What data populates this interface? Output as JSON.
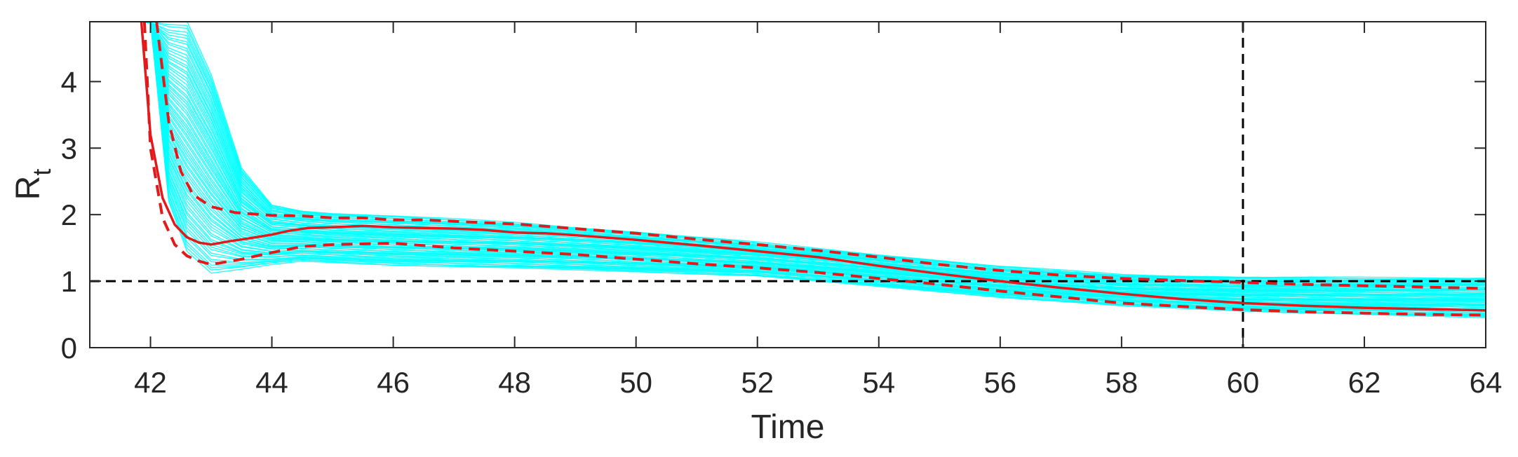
{
  "chart_data": {
    "type": "line",
    "title": "",
    "xlabel": "Time",
    "ylabel_main": "R",
    "ylabel_sub": "t",
    "xlim": [
      41,
      64
    ],
    "ylim": [
      0,
      4.9
    ],
    "xticks": [
      42,
      44,
      46,
      48,
      50,
      52,
      54,
      56,
      58,
      60,
      62,
      64
    ],
    "yticks": [
      0,
      1,
      2,
      3,
      4
    ],
    "grid": false,
    "legend": false,
    "reference_lines": [
      {
        "orientation": "horizontal",
        "value": 1,
        "style": "dashed",
        "color": "#000000"
      },
      {
        "orientation": "vertical",
        "value": 60,
        "style": "dashed",
        "color": "#000000"
      }
    ],
    "ensemble": {
      "color": "#00ffff",
      "count": 70,
      "lower_envelope": {
        "x": [
          42.0,
          42.3,
          42.6,
          43.0,
          43.5,
          44.0,
          44.5,
          45.0,
          46.0,
          48.0,
          50.0,
          52.0,
          54.0,
          56.0,
          58.0,
          60.0,
          62.0,
          64.0
        ],
        "y": [
          4.9,
          2.2,
          1.45,
          1.12,
          1.18,
          1.25,
          1.3,
          1.28,
          1.24,
          1.2,
          1.14,
          1.08,
          0.92,
          0.76,
          0.63,
          0.55,
          0.5,
          0.45
        ]
      },
      "upper_envelope": {
        "x": [
          42.0,
          42.3,
          42.6,
          43.0,
          43.5,
          44.0,
          44.5,
          45.0,
          46.0,
          48.0,
          50.0,
          52.0,
          54.0,
          56.0,
          58.0,
          60.0,
          62.0,
          64.0
        ],
        "y": [
          4.9,
          4.9,
          4.9,
          4.1,
          2.7,
          2.15,
          2.06,
          2.02,
          1.98,
          1.88,
          1.74,
          1.58,
          1.4,
          1.22,
          1.1,
          1.06,
          1.05,
          1.05
        ]
      }
    },
    "series": [
      {
        "role": "median",
        "color": "#e31a1c",
        "style": "solid",
        "x": [
          41.85,
          42.0,
          42.2,
          42.4,
          42.6,
          42.8,
          43.0,
          43.3,
          43.6,
          44.0,
          44.3,
          44.6,
          45.0,
          45.5,
          46.0,
          46.5,
          47.0,
          47.5,
          48.0,
          48.5,
          49.0,
          50.0,
          51.0,
          52.0,
          53.0,
          54.0,
          55.0,
          56.0,
          57.0,
          58.0,
          59.0,
          60.0,
          61.0,
          62.0,
          63.0,
          64.0
        ],
        "y": [
          4.9,
          3.2,
          2.25,
          1.85,
          1.66,
          1.58,
          1.55,
          1.6,
          1.64,
          1.7,
          1.76,
          1.8,
          1.81,
          1.83,
          1.81,
          1.8,
          1.79,
          1.77,
          1.73,
          1.72,
          1.69,
          1.62,
          1.54,
          1.45,
          1.36,
          1.23,
          1.11,
          1.0,
          0.9,
          0.81,
          0.73,
          0.67,
          0.63,
          0.6,
          0.58,
          0.56
        ]
      },
      {
        "role": "upper-bound",
        "color": "#e31a1c",
        "style": "dashed",
        "x": [
          42.1,
          42.3,
          42.5,
          42.7,
          43.0,
          43.4,
          44.0,
          44.5,
          45.0,
          45.5,
          46.0,
          46.5,
          47.0,
          48.0,
          49.0,
          50.0,
          51.0,
          52.0,
          53.0,
          54.0,
          55.0,
          56.0,
          57.0,
          58.0,
          59.0,
          60.0,
          61.0,
          62.0,
          63.0,
          64.0
        ],
        "y": [
          4.9,
          3.4,
          2.65,
          2.3,
          2.12,
          2.03,
          1.99,
          1.98,
          1.95,
          1.95,
          1.92,
          1.92,
          1.9,
          1.86,
          1.79,
          1.72,
          1.63,
          1.55,
          1.46,
          1.36,
          1.25,
          1.16,
          1.09,
          1.04,
          1.01,
          0.98,
          0.95,
          0.93,
          0.91,
          0.89
        ]
      },
      {
        "role": "lower-bound",
        "color": "#e31a1c",
        "style": "dashed",
        "x": [
          41.9,
          42.0,
          42.2,
          42.4,
          42.6,
          42.8,
          43.0,
          43.5,
          44.0,
          44.5,
          45.0,
          46.0,
          47.0,
          48.0,
          49.0,
          50.0,
          51.0,
          52.0,
          53.0,
          54.0,
          55.0,
          56.0,
          57.0,
          58.0,
          59.0,
          60.0,
          61.0,
          62.0,
          63.0,
          64.0
        ],
        "y": [
          4.9,
          3.0,
          1.95,
          1.55,
          1.38,
          1.3,
          1.25,
          1.33,
          1.43,
          1.52,
          1.55,
          1.57,
          1.5,
          1.45,
          1.4,
          1.33,
          1.26,
          1.2,
          1.13,
          1.04,
          0.95,
          0.85,
          0.76,
          0.67,
          0.62,
          0.57,
          0.54,
          0.52,
          0.5,
          0.49
        ]
      }
    ]
  }
}
